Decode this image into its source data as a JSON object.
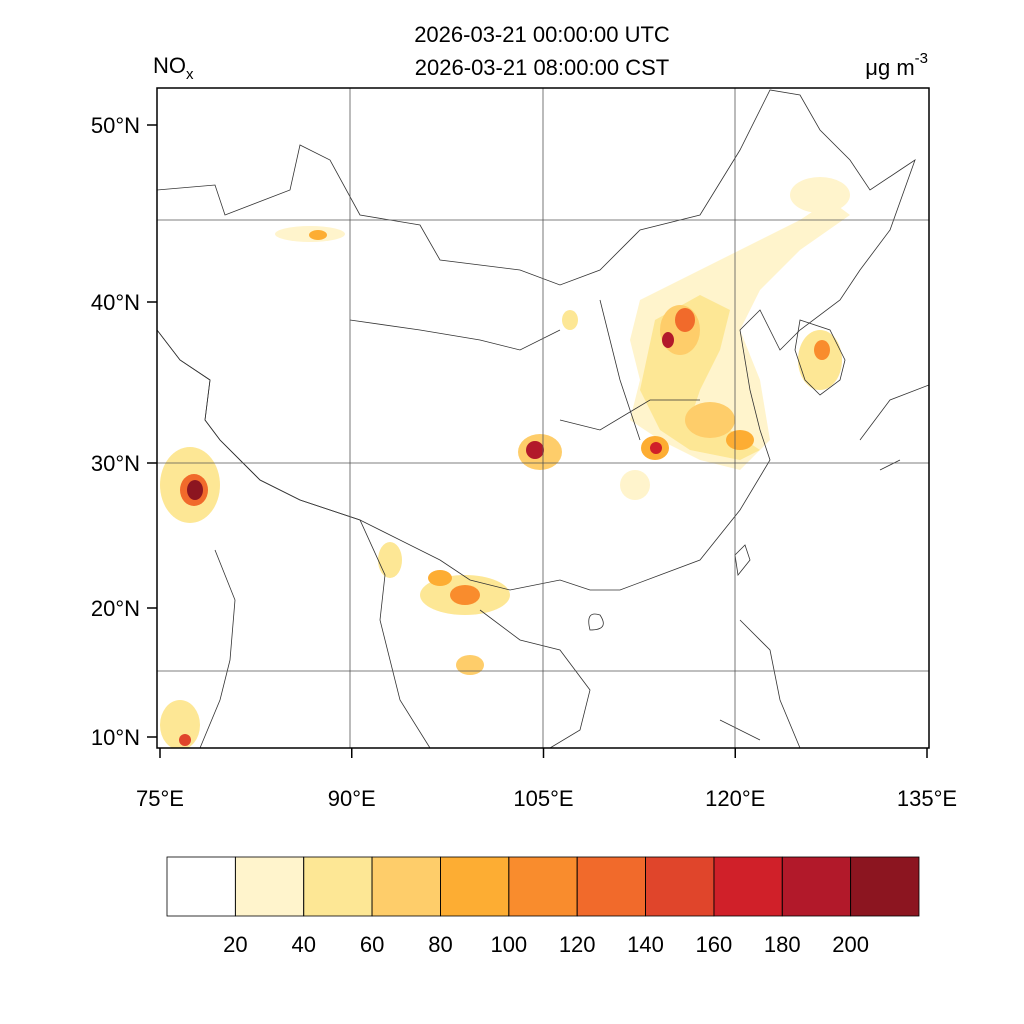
{
  "title_lines": [
    "2026-03-21 00:00:00 UTC",
    "2026-03-21 08:00:00 CST"
  ],
  "variable": {
    "text": "NO",
    "subscript": "x"
  },
  "units": {
    "text": "μg m",
    "superscript": "-3"
  },
  "axes": {
    "xlim": [
      75,
      135
    ],
    "xticks": [
      {
        "value": 75,
        "label": "75°E"
      },
      {
        "value": 90,
        "label": "90°E"
      },
      {
        "value": 105,
        "label": "105°E"
      },
      {
        "value": 120,
        "label": "120°E"
      },
      {
        "value": 135,
        "label": "135°E"
      }
    ],
    "yticks": [
      {
        "value": 50,
        "label": "50°N"
      },
      {
        "value": 40,
        "label": "40°N"
      },
      {
        "value": 30,
        "label": "30°N"
      },
      {
        "value": 20,
        "label": "20°N"
      },
      {
        "value": 10,
        "label": "10°N"
      }
    ]
  },
  "colorbar": {
    "levels": [
      20,
      40,
      60,
      80,
      100,
      120,
      140,
      160,
      180,
      200
    ],
    "colors": [
      "#ffffff",
      "#fff4cc",
      "#fde795",
      "#fecd6a",
      "#fdad33",
      "#f98c2d",
      "#f16a2b",
      "#e0452b",
      "#d02029",
      "#b2192a",
      "#8c1520"
    ]
  }
}
